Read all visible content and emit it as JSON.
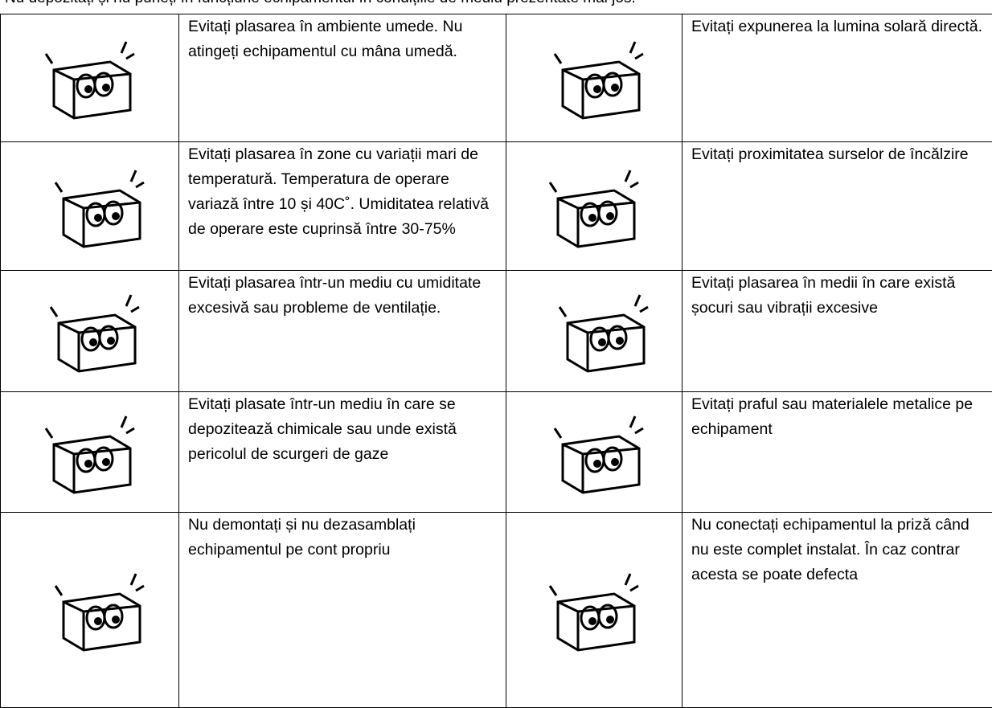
{
  "header": {
    "intro": "Nu depozitați și nu puneți în funcțiune echipamentul în condițiile de mediu prezentate mai jos."
  },
  "table": {
    "rows": [
      [
        "Evitați plasarea în ambiente umede. Nu atingeți echipamentul cu mâna umedă.",
        "Evitați expunerea la lumina solară directă."
      ],
      [
        "Evitați plasarea în zone cu variații mari de temperatură. Temperatura de operare variază între 10 și 40C˚. Umiditatea relativă de operare este cuprinsă între 30-75%",
        "Evitați proximitatea surselor de încălzire"
      ],
      [
        "Evitați plasarea într-un mediu cu umiditate excesivă sau probleme de ventilație.",
        "Evitați plasarea în medii în care există șocuri sau vibrații excesive"
      ],
      [
        "Evitați plasate într-un mediu în care se depozitează chimicale sau unde există pericolul de scurgeri de gaze",
        "Evitați praful sau materialele metalice pe echipament"
      ],
      [
        "Nu demontați și nu dezasamblați echipamentul pe cont propriu",
        "Nu conectați echipamentul la priză când nu este complet instalat. În caz contrar acesta se poate defecta"
      ]
    ]
  }
}
